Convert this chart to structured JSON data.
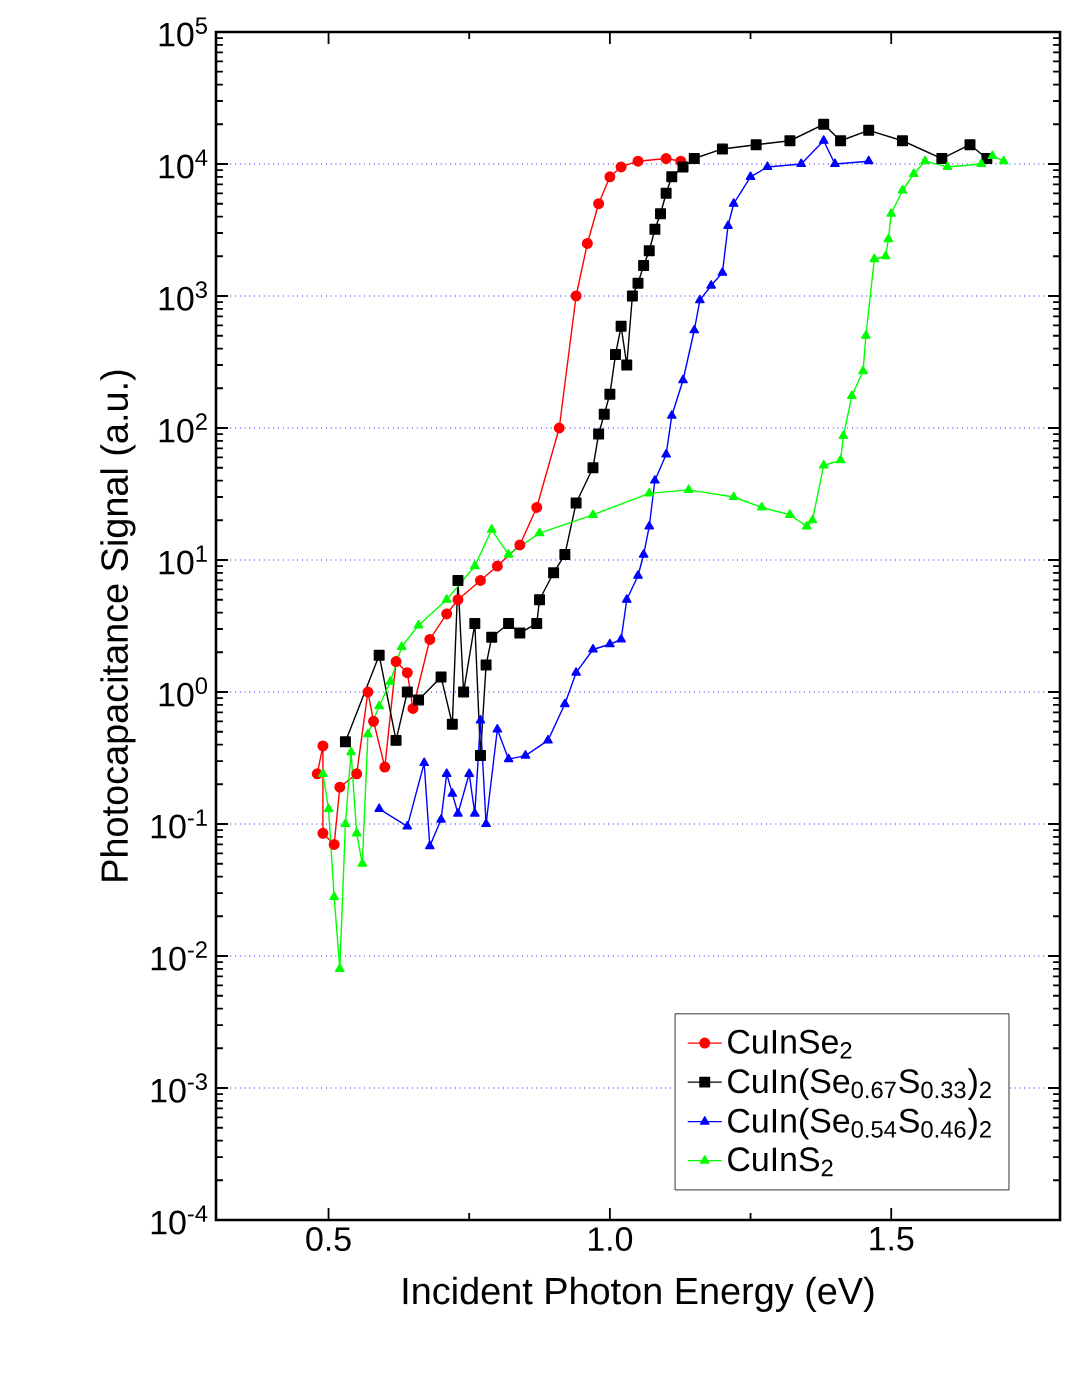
{
  "chart_data": {
    "type": "line",
    "xlabel": "Incident Photon Energy (eV)",
    "ylabel": "Photocapacitance Signal (a.u.)",
    "xlim": [
      0.3,
      1.8
    ],
    "xticks": [
      0.5,
      {
        "value": 1.0,
        "label": "1.0"
      },
      1.5
    ],
    "ylim": [
      0.0001,
      100000
    ],
    "yticks": [
      {
        "value": 0.0001,
        "label": "10$^{-4}$"
      },
      {
        "value": 0.001,
        "label": "10$^{-3}$"
      },
      {
        "value": 0.01,
        "label": "10$^{-2}$"
      },
      {
        "value": 0.1,
        "label": "10$^{-1}$"
      },
      {
        "value": 1,
        "label": "10$^{0}$"
      },
      {
        "value": 10,
        "label": "10$^{1}$"
      },
      {
        "value": 100,
        "label": "10$^{2}$"
      },
      {
        "value": 1000,
        "label": "10$^{3}$"
      },
      {
        "value": 10000,
        "label": "10$^{4}$"
      },
      {
        "value": 100000,
        "label": "10$^{5}$"
      }
    ],
    "log": "y",
    "grid": "y",
    "legend": "bottom right",
    "series": [
      {
        "name": "CuInSe$_{2}$",
        "color": "#ff0000",
        "marker": "circle",
        "x": [
          0.48,
          0.49,
          0.49,
          0.51,
          0.52,
          0.55,
          0.57,
          0.58,
          0.6,
          0.62,
          0.64,
          0.65,
          0.68,
          0.71,
          0.73,
          0.77,
          0.8,
          0.84,
          0.87,
          0.91,
          0.94,
          0.96,
          0.98,
          1.0,
          1.02,
          1.05,
          1.1,
          1.126
        ],
        "values": [
          0.24,
          0.39,
          0.085,
          0.07,
          0.19,
          0.24,
          1.0,
          0.6,
          0.27,
          1.7,
          1.4,
          0.75,
          2.5,
          3.9,
          5,
          7,
          9,
          13,
          25,
          100,
          1000,
          2500,
          5000,
          8000,
          9500,
          10500,
          11000,
          10500
        ]
      },
      {
        "name": "CuIn(Se$_{0.67}$S$_{0.33}$)$_{2}$",
        "color": "#000000",
        "marker": "square",
        "x": [
          0.53,
          0.59,
          0.62,
          0.64,
          0.66,
          0.7,
          0.72,
          0.73,
          0.74,
          0.76,
          0.77,
          0.78,
          0.79,
          0.82,
          0.84,
          0.87,
          0.875,
          0.9,
          0.92,
          0.94,
          0.97,
          0.98,
          0.99,
          1.0,
          1.01,
          1.02,
          1.03,
          1.04,
          1.05,
          1.06,
          1.07,
          1.08,
          1.09,
          1.1,
          1.11,
          1.13,
          1.15,
          1.2,
          1.26,
          1.32,
          1.38,
          1.41,
          1.46,
          1.52,
          1.59,
          1.64,
          1.67
        ],
        "values": [
          0.42,
          1.9,
          0.43,
          1.0,
          0.87,
          1.3,
          0.57,
          7,
          1.0,
          3.3,
          0.33,
          1.6,
          2.6,
          3.3,
          2.8,
          3.3,
          5,
          8,
          11,
          27,
          50,
          90,
          127,
          180,
          360,
          590,
          300,
          1000,
          1250,
          1700,
          2200,
          3200,
          4200,
          6000,
          8000,
          9500,
          11000,
          13000,
          14000,
          15000,
          20000,
          15000,
          18000,
          15000,
          11000,
          14000,
          11000
        ]
      },
      {
        "name": "CuIn(Se$_{0.54}$S$_{0.46}$)$_{2}$",
        "color": "#0000ff",
        "marker": "triangle",
        "x": [
          0.59,
          0.64,
          0.67,
          0.68,
          0.7,
          0.71,
          0.72,
          0.73,
          0.75,
          0.76,
          0.77,
          0.78,
          0.8,
          0.82,
          0.85,
          0.89,
          0.92,
          0.94,
          0.97,
          1.0,
          1.02,
          1.03,
          1.05,
          1.06,
          1.07,
          1.08,
          1.1,
          1.11,
          1.13,
          1.15,
          1.16,
          1.18,
          1.2,
          1.21,
          1.22,
          1.25,
          1.28,
          1.34,
          1.38,
          1.4,
          1.46
        ],
        "values": [
          0.13,
          0.096,
          0.29,
          0.068,
          0.108,
          0.24,
          0.17,
          0.12,
          0.24,
          0.12,
          0.61,
          0.1,
          0.52,
          0.31,
          0.33,
          0.43,
          0.81,
          1.4,
          2.1,
          2.3,
          2.5,
          5,
          7.6,
          11,
          18,
          40,
          63,
          124,
          230,
          550,
          930,
          1200,
          1500,
          3400,
          5000,
          8000,
          9500,
          10000,
          15000,
          10000,
          10500
        ]
      },
      {
        "name": "CuInS$_{2}$",
        "color": "#00ff00",
        "marker": "triangle",
        "x": [
          0.49,
          0.5,
          0.51,
          0.52,
          0.53,
          0.54,
          0.55,
          0.56,
          0.57,
          0.59,
          0.61,
          0.63,
          0.66,
          0.71,
          0.76,
          0.79,
          0.82,
          0.875,
          0.97,
          1.07,
          1.14,
          1.22,
          1.27,
          1.32,
          1.35,
          1.36,
          1.38,
          1.41,
          1.415,
          1.43,
          1.45,
          1.455,
          1.47,
          1.49,
          1.495,
          1.5,
          1.52,
          1.54,
          1.56,
          1.6,
          1.66,
          1.68,
          1.7
        ],
        "values": [
          0.24,
          0.13,
          0.028,
          0.008,
          0.1,
          0.35,
          0.085,
          0.05,
          0.48,
          0.78,
          1.2,
          2.2,
          3.2,
          5,
          9,
          17,
          11,
          16,
          22,
          32,
          34,
          30,
          25,
          22,
          18,
          20,
          52,
          57,
          87,
          175,
          270,
          500,
          1900,
          2000,
          2700,
          4200,
          6300,
          8400,
          10500,
          9500,
          10000,
          11500,
          10500
        ]
      }
    ]
  }
}
